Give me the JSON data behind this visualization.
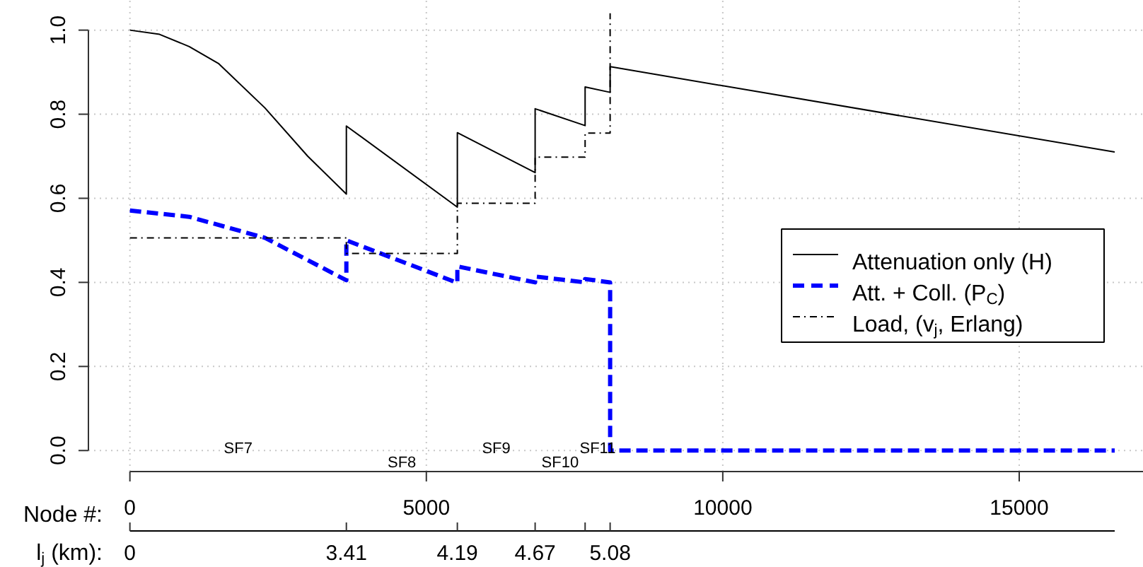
{
  "chart_data": {
    "type": "line",
    "xlabel": "Node #:",
    "x2label": "l$_{j}$ (km):",
    "xlim": [
      -700,
      17100
    ],
    "xticks": [
      0,
      5000,
      10000,
      15000
    ],
    "ylim": [
      -0.05,
      1.07
    ],
    "yticks": [
      {
        "value": 0,
        "label": "0.0"
      },
      {
        "value": 0.2,
        "label": "0.2"
      },
      {
        "value": 0.4,
        "label": "0.4"
      },
      {
        "value": 0.6,
        "label": "0.6"
      },
      {
        "value": 0.8,
        "label": "0.8"
      },
      {
        "value": 1.0,
        "label": "1.0"
      }
    ],
    "grid": true,
    "legend": "right",
    "series": [
      {
        "name": "Attenuation only (H)",
        "color": "#000000",
        "line_style": "solid",
        "x": [
          0,
          500,
          1000,
          1500,
          2277,
          3000,
          3651,
          3651,
          5523,
          5523,
          6835,
          6835,
          7678,
          7678,
          8100,
          8100,
          16611
        ],
        "values": [
          1.0,
          0.99,
          0.961,
          0.92,
          0.815,
          0.7,
          0.61,
          0.772,
          0.579,
          0.756,
          0.661,
          0.813,
          0.773,
          0.865,
          0.852,
          0.913,
          0.71
        ]
      },
      {
        "name": "Att. + Coll. (P$_{C}$)",
        "color": "#0000ff",
        "line_style": "dashed",
        "x": [
          0,
          1000,
          2277,
          3651,
          3651,
          5523,
          5523,
          6835,
          6835,
          7678,
          7678,
          8100,
          8100,
          16611
        ],
        "values": [
          0.571,
          0.556,
          0.506,
          0.405,
          0.5,
          0.399,
          0.438,
          0.4,
          0.414,
          0.4,
          0.408,
          0.4,
          0,
          0
        ]
      },
      {
        "name": "Load, (v$_{j}$, Erlang)",
        "color": "#000000",
        "line_style": "dashdot",
        "x": [
          0,
          3651,
          3651,
          5523,
          5523,
          6835,
          6835,
          7678,
          7678,
          8100,
          8100
        ],
        "values": [
          0.506,
          0.506,
          0.469,
          0.469,
          0.588,
          0.588,
          0.698,
          0.698,
          0.755,
          0.755,
          1.04
        ]
      }
    ],
    "annotations": [
      "SF7",
      "SF8",
      "SF9",
      "SF10",
      "SF11",
      {
        "text": "0",
        "x": 0
      },
      {
        "text": "3.41",
        "x": 3651
      },
      {
        "text": "4.19",
        "x": 5523
      },
      {
        "text": "4.67",
        "x": 6835
      },
      {
        "text": "5.08",
        "x": 8100
      }
    ]
  }
}
